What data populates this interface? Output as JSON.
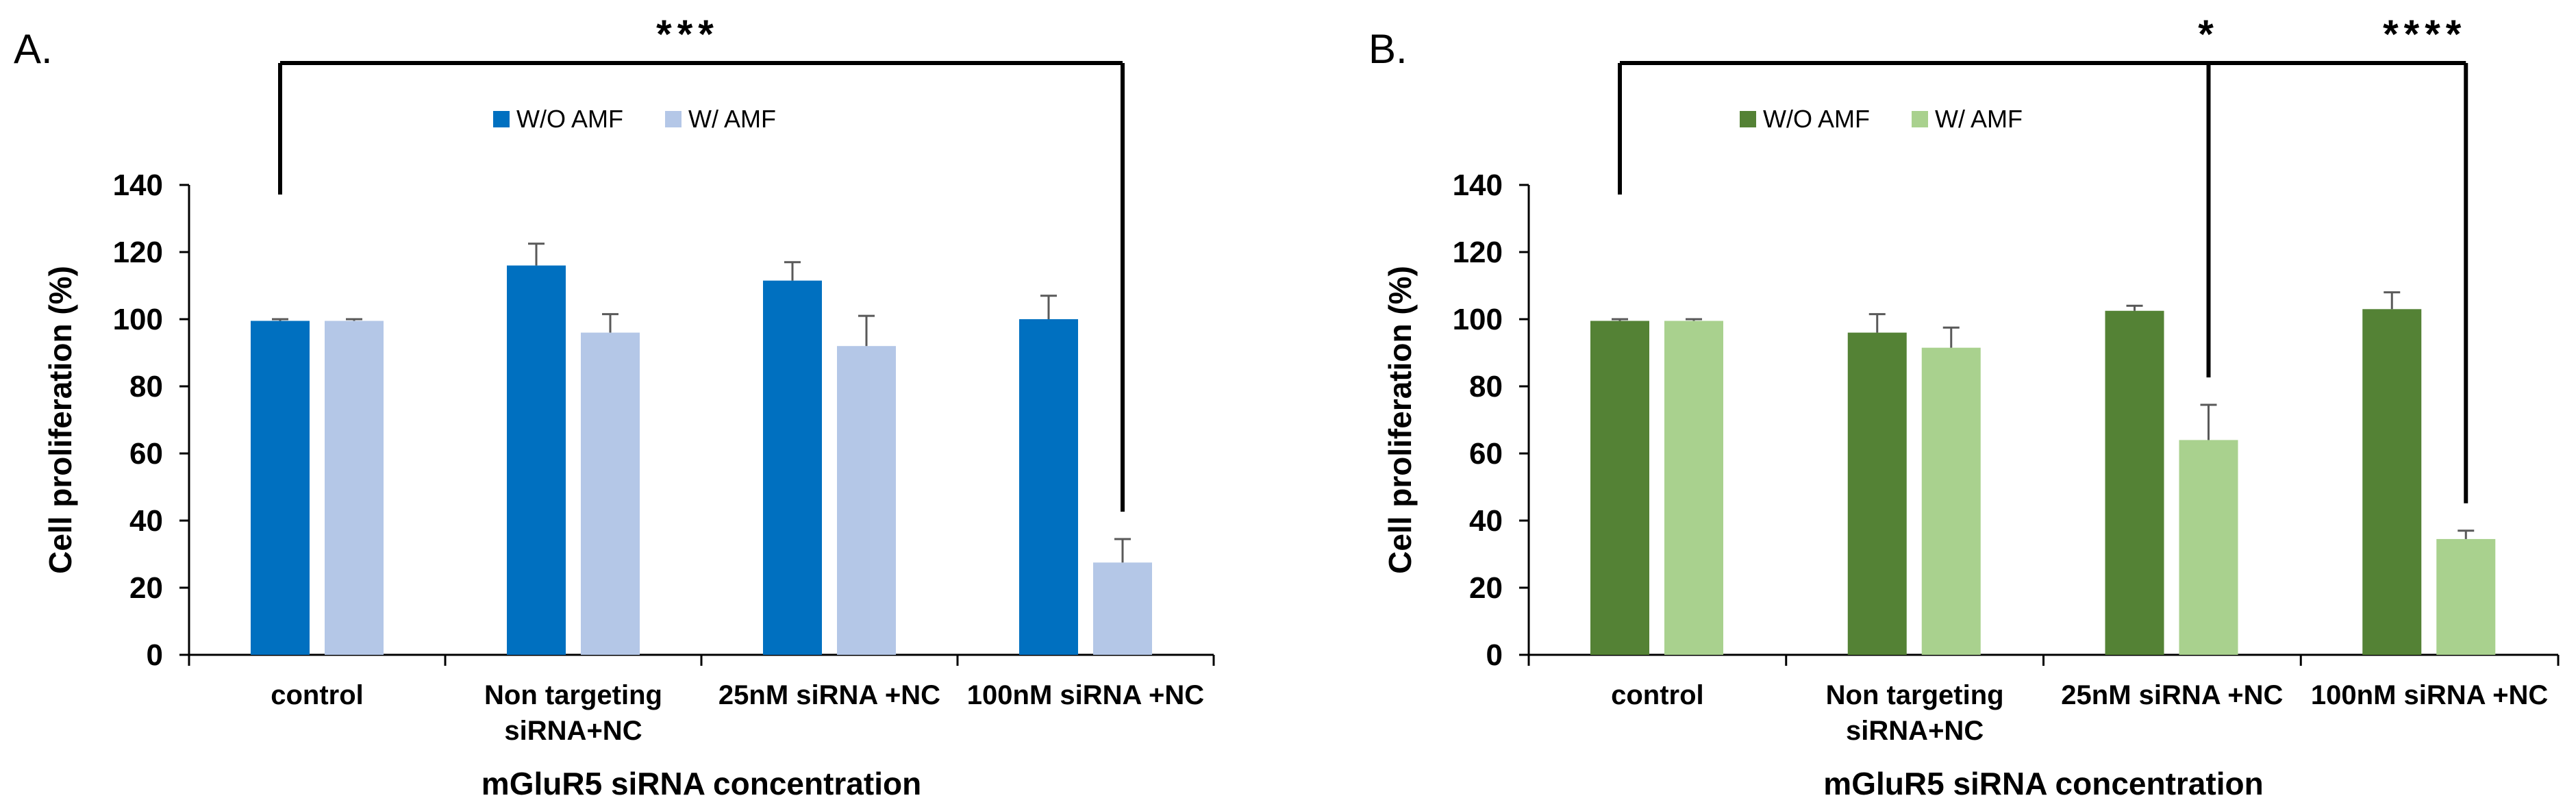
{
  "chart_data": [
    {
      "panel_label": "A.",
      "type": "bar",
      "categories": [
        [
          "control"
        ],
        [
          "Non targeting",
          "siRNA+NC"
        ],
        [
          "25nM siRNA +NC"
        ],
        [
          "100nM siRNA +NC"
        ]
      ],
      "series": [
        {
          "name": "W/O AMF",
          "color": "#0070C0",
          "values": [
            99.5,
            116,
            111.5,
            100
          ],
          "errors": [
            0.5,
            6.5,
            5.5,
            7
          ]
        },
        {
          "name": "W/ AMF",
          "color": "#B4C7E7",
          "values": [
            99.5,
            96,
            92,
            27.5
          ],
          "errors": [
            0.5,
            5.5,
            9,
            7
          ]
        }
      ],
      "xlabel": "mGluR5 siRNA concentration",
      "ylabel": "Cell proliferation (%)",
      "ylim": [
        0,
        140
      ],
      "yticks": [
        0,
        20,
        40,
        60,
        80,
        100,
        120,
        140
      ],
      "legend_position": "top-left",
      "significance": [
        {
          "from_category": 0,
          "from_series": 0,
          "to_category": 3,
          "to_series": 1,
          "label": "***"
        }
      ]
    },
    {
      "panel_label": "B.",
      "type": "bar",
      "categories": [
        [
          "control"
        ],
        [
          "Non targeting",
          "siRNA+NC"
        ],
        [
          "25nM siRNA +NC"
        ],
        [
          "100nM siRNA +NC"
        ]
      ],
      "series": [
        {
          "name": "W/O AMF",
          "color": "#548235",
          "values": [
            99.5,
            96,
            102.5,
            103
          ],
          "errors": [
            0.5,
            5.5,
            1.5,
            5
          ]
        },
        {
          "name": "W/ AMF",
          "color": "#A9D18E",
          "values": [
            99.5,
            91.5,
            64,
            34.5
          ],
          "errors": [
            0.5,
            6,
            10.5,
            2.5
          ]
        }
      ],
      "xlabel": "mGluR5 siRNA concentration",
      "ylabel": "Cell proliferation (%)",
      "ylim": [
        0,
        140
      ],
      "yticks": [
        0,
        20,
        40,
        60,
        80,
        100,
        120,
        140
      ],
      "legend_position": "top-left",
      "significance": [
        {
          "from_category": 0,
          "from_series": 0,
          "to_category": 2,
          "to_series": 1,
          "label": "*"
        },
        {
          "from_category": 0,
          "from_series": 0,
          "to_category": 3,
          "to_series": 1,
          "label": "****"
        }
      ]
    }
  ]
}
